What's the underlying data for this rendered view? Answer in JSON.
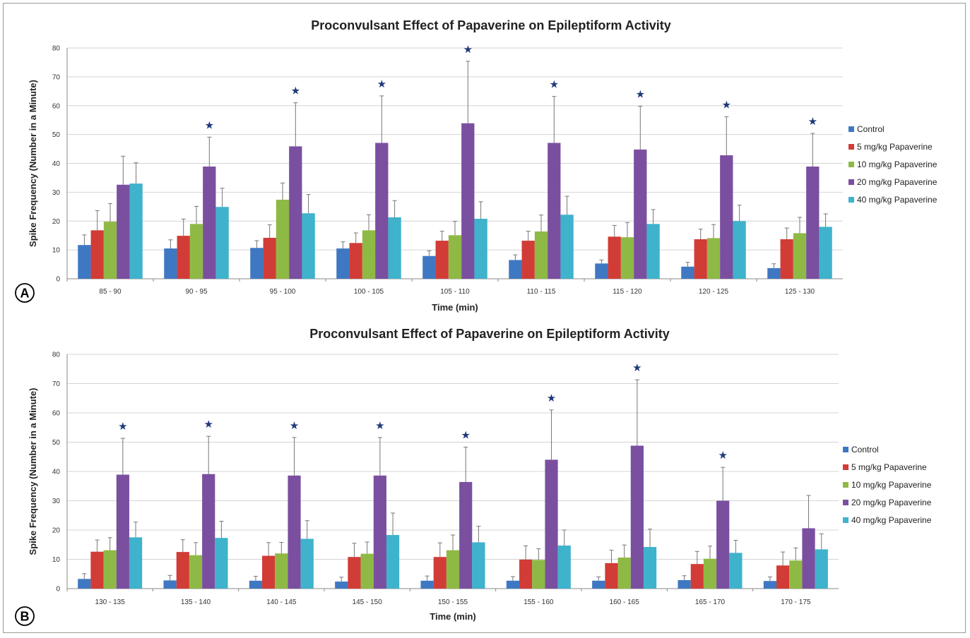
{
  "colors": {
    "Control": "#3f78c2",
    "5 mg/kg Papaverine": "#d23c36",
    "10 mg/kg Papaverine": "#8fb945",
    "20 mg/kg Papaverine": "#7a4fa0",
    "40 mg/kg Papaverine": "#3fb2cc"
  },
  "chart_data": [
    {
      "panel": "A",
      "type": "bar",
      "title": "Proconvulsant Effect of Papaverine on Epileptiform Activity",
      "xlabel": "Time (min)",
      "ylabel": "Spike Frequency (Number in a Minute)",
      "ylim": [
        0,
        80
      ],
      "yticks": [
        0,
        10,
        20,
        30,
        40,
        50,
        60,
        70,
        80
      ],
      "grid": true,
      "legend_position": "right",
      "categories": [
        "85 - 90",
        "90 - 95",
        "95 - 100",
        "100 - 105",
        "105 - 110",
        "110 - 115",
        "115 - 120",
        "120 - 125",
        "125 - 130"
      ],
      "series": [
        {
          "name": "Control",
          "values": [
            11.7,
            10.5,
            10.7,
            10.5,
            7.9,
            6.5,
            5.3,
            4.2,
            3.7
          ],
          "errors": [
            3.5,
            3,
            2.5,
            2.3,
            1.8,
            1.8,
            1.2,
            1.5,
            1.5
          ]
        },
        {
          "name": "5 mg/kg Papaverine",
          "values": [
            16.8,
            14.9,
            14.2,
            12.4,
            13.2,
            13.2,
            14.6,
            13.7,
            13.7
          ],
          "errors": [
            6.8,
            5.8,
            4.5,
            3.5,
            3.3,
            3.3,
            3.9,
            3.5,
            3.9
          ]
        },
        {
          "name": "10 mg/kg Papaverine",
          "values": [
            19.8,
            19.0,
            27.4,
            16.8,
            15.1,
            16.4,
            14.4,
            14.1,
            15.8
          ],
          "errors": [
            6.3,
            6.1,
            5.8,
            5.4,
            4.8,
            5.7,
            5.1,
            4.7,
            5.5
          ]
        },
        {
          "name": "20 mg/kg Papaverine",
          "values": [
            32.6,
            38.9,
            45.9,
            47.1,
            53.9,
            47.1,
            44.8,
            42.8,
            38.9
          ],
          "errors": [
            9.9,
            10.2,
            15.1,
            16.3,
            21.5,
            16.1,
            15,
            13.4,
            11.5
          ]
        },
        {
          "name": "40 mg/kg Papaverine",
          "values": [
            33.0,
            24.9,
            22.7,
            21.3,
            20.8,
            22.2,
            19.0,
            20.0,
            18.0
          ],
          "errors": [
            7.2,
            6.5,
            6.5,
            5.8,
            5.9,
            6.4,
            5,
            5.5,
            4.5
          ]
        }
      ],
      "significant_marker": "★",
      "significant_categories": [
        1,
        2,
        3,
        4,
        5,
        6,
        7,
        8
      ]
    },
    {
      "panel": "B",
      "type": "bar",
      "title": "Proconvulsant Effect of Papaverine on Epileptiform Activity",
      "xlabel": "Time (min)",
      "ylabel": "Spike Frequency (Number in a Minute)",
      "ylim": [
        0,
        80
      ],
      "yticks": [
        0,
        10,
        20,
        30,
        40,
        50,
        60,
        70,
        80
      ],
      "grid": true,
      "legend_position": "right",
      "categories": [
        "130 - 135",
        "135 - 140",
        "140 - 145",
        "145 - 150",
        "150 - 155",
        "155 - 160",
        "160 - 165",
        "165 - 170",
        "170 - 175"
      ],
      "series": [
        {
          "name": "Control",
          "values": [
            3.3,
            2.8,
            2.7,
            2.4,
            2.7,
            2.7,
            2.7,
            2.9,
            2.6
          ],
          "errors": [
            1.8,
            1.7,
            1.5,
            1.5,
            1.6,
            1.4,
            1.3,
            1.5,
            1.4
          ]
        },
        {
          "name": "5 mg/kg Papaverine",
          "values": [
            12.6,
            12.5,
            11.2,
            10.8,
            10.8,
            9.9,
            8.7,
            8.4,
            7.9
          ],
          "errors": [
            4,
            4.2,
            4.5,
            4.7,
            4.8,
            4.7,
            4.4,
            4.3,
            4.6
          ]
        },
        {
          "name": "10 mg/kg Papaverine",
          "values": [
            13.1,
            11.4,
            12.0,
            11.9,
            13.1,
            9.8,
            10.6,
            10.2,
            9.6
          ],
          "errors": [
            4.3,
            4.3,
            3.8,
            4,
            5.2,
            3.8,
            4.3,
            4.3,
            4.3
          ]
        },
        {
          "name": "20 mg/kg Papaverine",
          "values": [
            38.9,
            39.1,
            38.6,
            38.6,
            36.4,
            44.0,
            48.8,
            30.0,
            20.6
          ],
          "errors": [
            12.4,
            12.9,
            13,
            13,
            11.9,
            17,
            22.5,
            11.4,
            11.2
          ]
        },
        {
          "name": "40 mg/kg Papaverine",
          "values": [
            17.5,
            17.3,
            17.0,
            18.3,
            15.8,
            14.7,
            14.2,
            12.2,
            13.4
          ],
          "errors": [
            5.2,
            5.7,
            6.2,
            7.5,
            5.5,
            5.3,
            6.1,
            4.3,
            5.3
          ]
        }
      ],
      "significant_marker": "★",
      "significant_categories": [
        0,
        1,
        2,
        3,
        4,
        5,
        6,
        7
      ]
    }
  ]
}
